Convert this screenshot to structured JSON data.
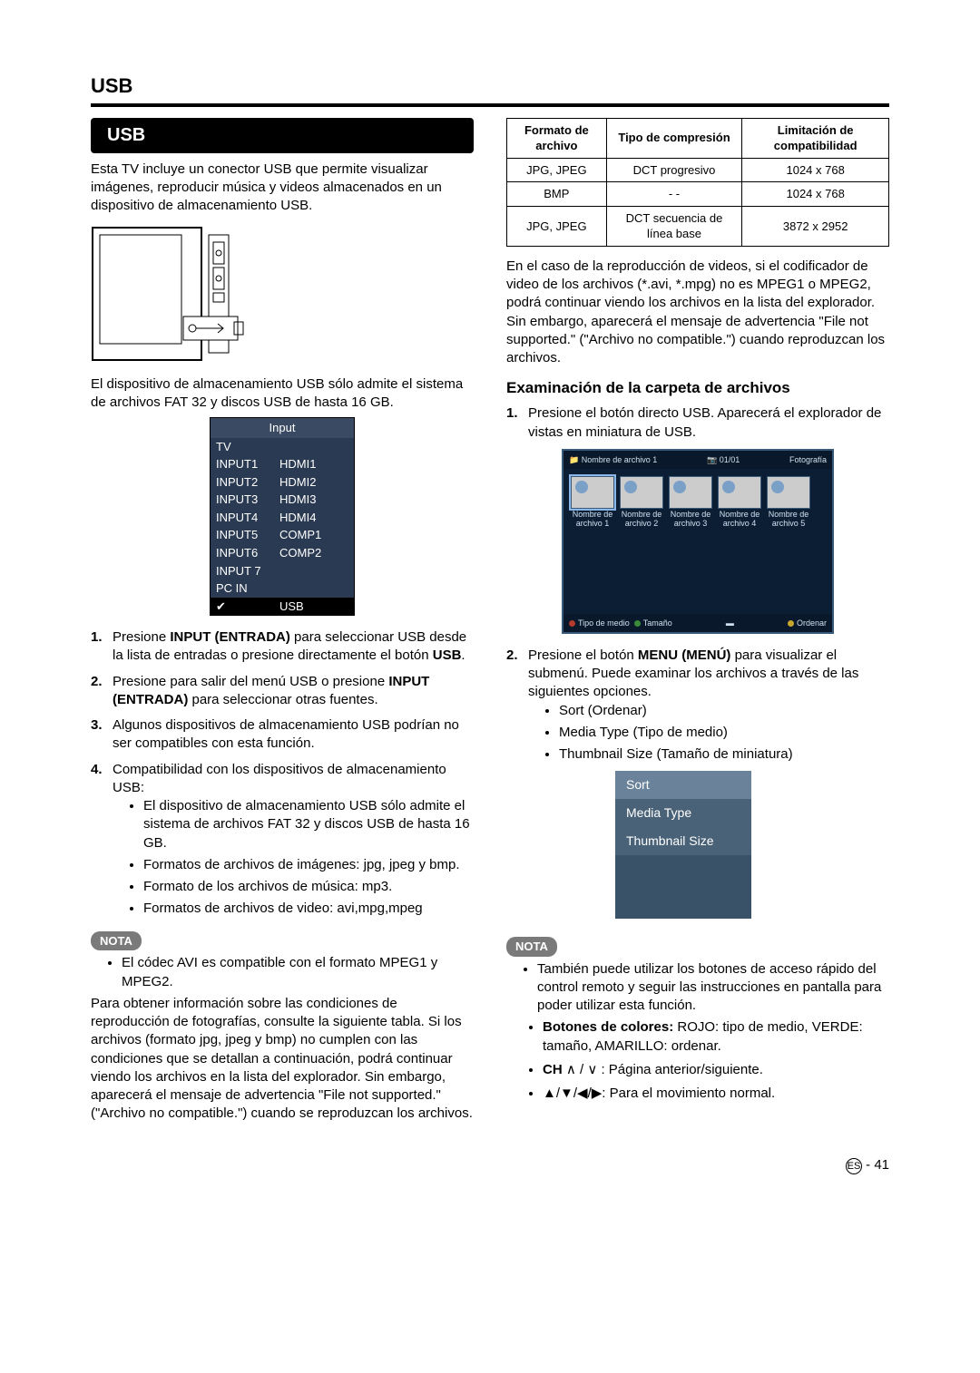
{
  "page": {
    "headTitle": "USB",
    "footerLang": "ES",
    "footerPage": "41"
  },
  "left": {
    "usbBar": "USB",
    "intro": "Esta TV incluye un conector USB que permite visualizar imágenes, reproducir música y videos almacenados en un dispositivo de almacenamiento USB.",
    "storageNote": "El dispositivo de almacenamiento USB sólo admite el sistema de archivos FAT 32 y discos USB de hasta 16 GB.",
    "inputMenu": {
      "header": "Input",
      "rows": [
        [
          "TV",
          ""
        ],
        [
          "INPUT1",
          "HDMI1"
        ],
        [
          "INPUT2",
          "HDMI2"
        ],
        [
          "INPUT3",
          "HDMI3"
        ],
        [
          "INPUT4",
          "HDMI4"
        ],
        [
          "INPUT5",
          "COMP1"
        ],
        [
          "INPUT6",
          "COMP2"
        ],
        [
          "INPUT 7",
          ""
        ],
        [
          "PC IN",
          ""
        ]
      ],
      "selected": "USB",
      "selectedMark": "✔"
    },
    "steps": {
      "s1a": "Presione ",
      "s1b": "INPUT (ENTRADA)",
      "s1c": " para seleccionar USB desde la lista de entradas o presione directamente el botón ",
      "s1d": "USB",
      "s1e": ".",
      "s2a": "Presione para salir del menú USB o presione ",
      "s2b": "INPUT (ENTRADA)",
      "s2c": " para seleccionar otras fuentes.",
      "s3": "Algunos dispositivos de almacenamiento USB podrían no ser compatibles con esta función.",
      "s4": "Compatibilidad con los dispositivos de almacenamiento USB:",
      "s4bullets": [
        "El dispositivo de almacenamiento USB sólo admite el sistema de archivos FAT 32 y discos USB de hasta 16 GB.",
        "Formatos de archivos de imágenes: jpg, jpeg y bmp.",
        "Formato de los archivos de música: mp3.",
        "Formatos de archivos de video: avi,mpg,mpeg"
      ]
    },
    "notaLabel": "NOTA",
    "notaBullet": "El códec AVI es compatible con el formato MPEG1 y MPEG2.",
    "longPara": "Para obtener información sobre las condiciones de reproducción de fotografías, consulte la siguiente tabla. Si los archivos (formato jpg, jpeg y bmp) no cumplen con las condiciones que se detallan a continuación, podrá continuar viendo los archivos en la lista del explorador. Sin embargo, aparecerá el mensaje de advertencia \"File not supported.\" (\"Archivo no compatible.\") cuando se reproduzcan los archivos."
  },
  "right": {
    "table": {
      "headers": [
        "Formato de archivo",
        "Tipo de compresión",
        "Limitación de compatibilidad"
      ],
      "rows": [
        [
          "JPG, JPEG",
          "DCT progresivo",
          "1024 x 768"
        ],
        [
          "BMP",
          "- -",
          "1024 x 768"
        ],
        [
          "JPG, JPEG",
          "DCT secuencia de línea base",
          "3872 x 2952"
        ]
      ]
    },
    "videoPara": "En el caso de la reproducción de videos, si el codificador de video de los archivos (*.avi, *.mpg) no es MPEG1 o MPEG2, podrá continuar viendo los archivos en la lista del explorador. Sin embargo, aparecerá el mensaje de advertencia \"File not supported.\" (\"Archivo no compatible.\") cuando reproduzcan los archivos.",
    "examHeading": "Examinación de la carpeta de archivos",
    "examStep1": "Presione el botón directo USB. Aparecerá el explorador de vistas en miniatura de USB.",
    "browser": {
      "topFile": "Nombre de archivo 1",
      "topCount": "01/01",
      "topMode": "Fotografía",
      "thumbs": [
        "Nombre de archivo 1",
        "Nombre de archivo 2",
        "Nombre de archivo 3",
        "Nombre de archivo 4",
        "Nombre de archivo 5"
      ],
      "botLeft1": "Tipo de medio",
      "botLeft2": "Tamaño",
      "botRight": "Ordenar",
      "dotColors": {
        "red": "#b43a2e",
        "green": "#3a8a3a",
        "yellow": "#c9a72e"
      }
    },
    "examStep2a": "Presione el botón ",
    "examStep2b": "MENU (MENÚ)",
    "examStep2c": " para visualizar el submenú. Puede examinar los archivos a través de las siguientes opciones.",
    "examOptions": [
      "Sort (Ordenar)",
      "Media Type (Tipo de medio)",
      "Thumbnail Size (Tamaño de miniatura)"
    ],
    "submenu": [
      "Sort",
      "Media Type",
      "Thumbnail Size"
    ],
    "notaLabel": "NOTA",
    "notaBullet": "También puede utilizar los botones de acceso rápido del control remoto y seguir las instrucciones en pantalla para poder utilizar esta función.",
    "ctl1a": "Botones de colores:",
    "ctl1b": " ROJO: tipo de medio, VERDE: tamaño, AMARILLO: ordenar.",
    "ctl2a": "CH",
    "ctl2b": " ∧ / ∨  : Página anterior/siguiente.",
    "ctl3": "▲/▼/◀/▶: Para el movimiento normal."
  }
}
